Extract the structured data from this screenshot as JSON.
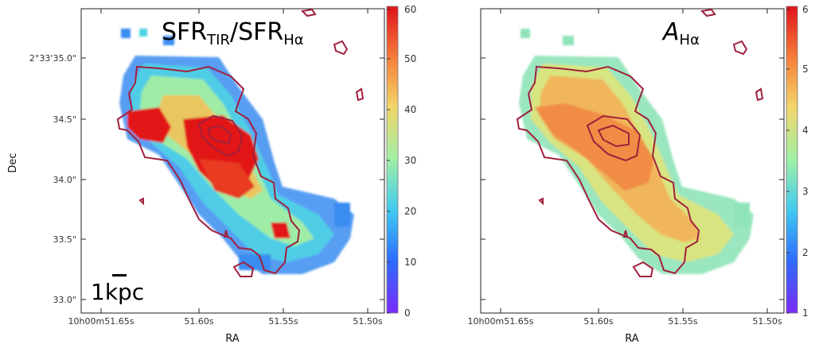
{
  "chart_data": [
    {
      "type": "heatmap",
      "title_main": "SFR",
      "title_sub1": "TIR",
      "title_mid": "/SFR",
      "title_sub2": "Hα",
      "xlabel": "RA",
      "ylabel": "Dec",
      "x_ticks": [
        "10h00m51.65s",
        "51.60s",
        "51.55s",
        "51.50s"
      ],
      "y_ticks": [
        "2°33'35.0\"",
        "34.5\"",
        "34.0\"",
        "33.5\"",
        "33.0\""
      ],
      "colorbar": {
        "min": 0,
        "max": 60,
        "ticks": [
          "0",
          "10",
          "20",
          "30",
          "40",
          "50",
          "60"
        ],
        "colormap": "rainbow"
      },
      "scalebar_label": "1kpc"
    },
    {
      "type": "heatmap",
      "title_main": "A",
      "title_sub1": "Hα",
      "xlabel": "RA",
      "ylabel": "",
      "x_ticks": [
        "10h00m51.65s",
        "51.60s",
        "51.55s",
        "51.50s"
      ],
      "colorbar": {
        "min": 1,
        "max": 6,
        "ticks": [
          "1",
          "2",
          "3",
          "4",
          "5",
          "6"
        ],
        "colormap": "rainbow"
      }
    }
  ],
  "colors": {
    "contour": "#a0203c"
  }
}
